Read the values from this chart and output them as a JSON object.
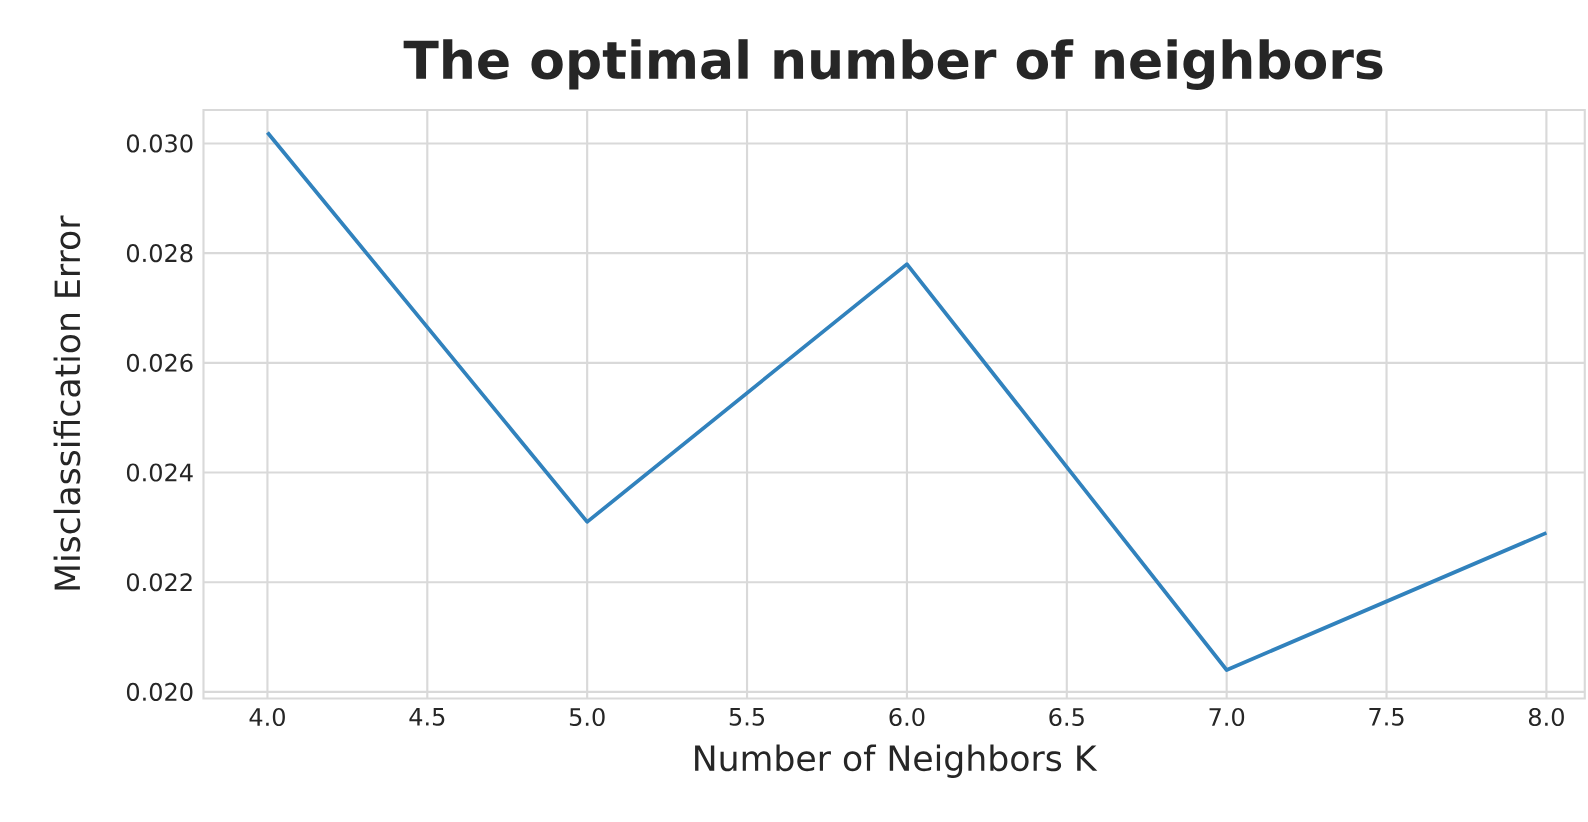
{
  "chart_data": {
    "type": "line",
    "title": "The optimal number of neighbors",
    "xlabel": "Number of Neighbors K",
    "ylabel": "Misclassification Error",
    "x": [
      4.0,
      5.0,
      6.0,
      7.0,
      8.0
    ],
    "series": [
      {
        "color": "#3182bd",
        "values": [
          0.0302,
          0.0231,
          0.0278,
          0.0204,
          0.0229
        ]
      }
    ],
    "xlim": [
      3.8,
      8.12
    ],
    "ylim": [
      0.01988,
      0.03061
    ],
    "xticks": [
      {
        "value": 4,
        "label": "4.0"
      },
      {
        "value": 4.5,
        "label": "4.5"
      },
      {
        "value": 5,
        "label": "5.0"
      },
      {
        "value": 5.5,
        "label": "5.5"
      },
      {
        "value": 6,
        "label": "6.0"
      },
      {
        "value": 6.5,
        "label": "6.5"
      },
      {
        "value": 7,
        "label": "7.0"
      },
      {
        "value": 7.5,
        "label": "7.5"
      },
      {
        "value": 8,
        "label": "8.0"
      }
    ],
    "yticks": [
      {
        "value": 0.02,
        "label": "0.020"
      },
      {
        "value": 0.022,
        "label": "0.022"
      },
      {
        "value": 0.024,
        "label": "0.024"
      },
      {
        "value": 0.026,
        "label": "0.026"
      },
      {
        "value": 0.028,
        "label": "0.028"
      },
      {
        "value": 0.03,
        "label": "0.030"
      }
    ],
    "grid": true,
    "marker": "none",
    "line_style": "solid"
  }
}
